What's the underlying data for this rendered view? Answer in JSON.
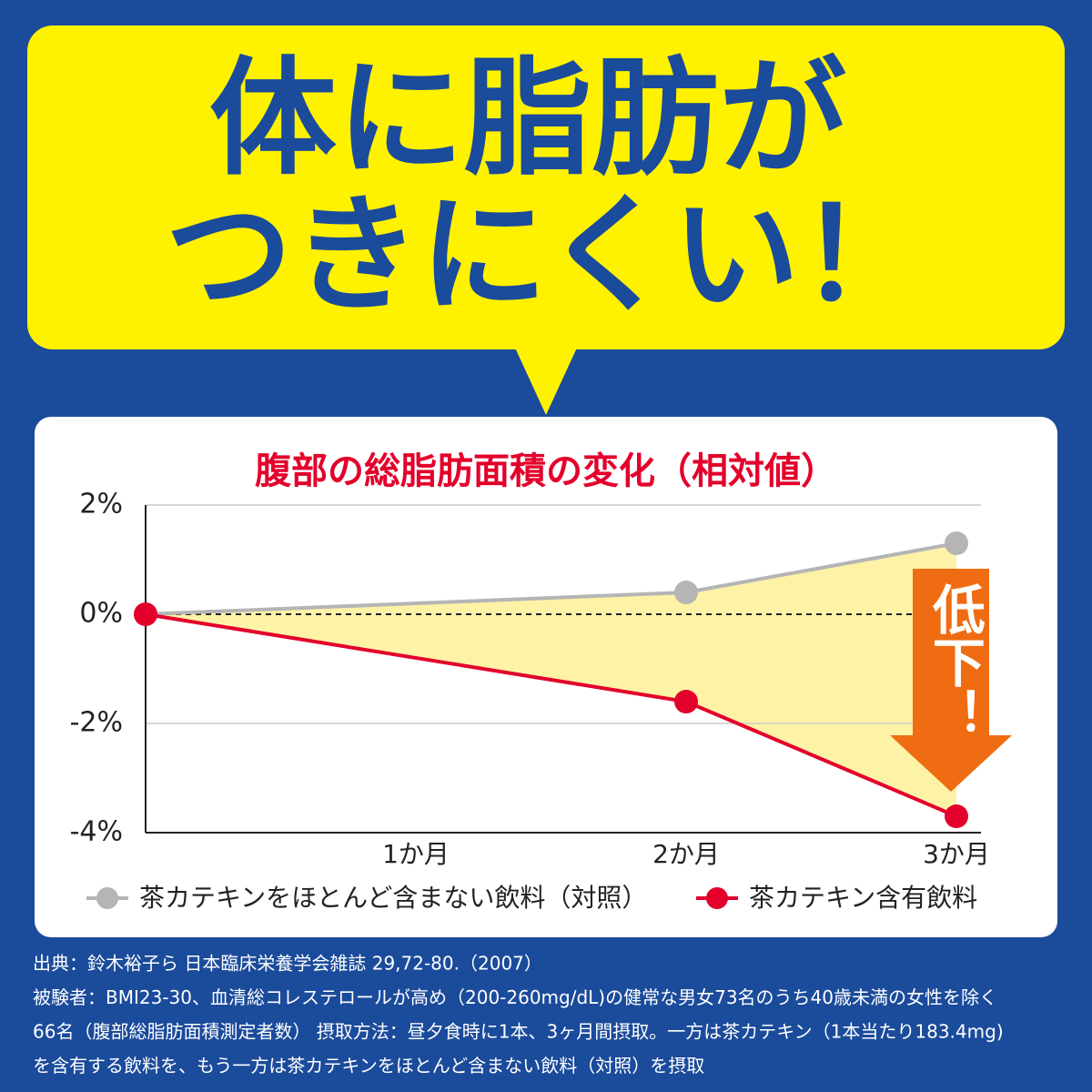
{
  "headline": [
    "体に脂肪が",
    "つきにくい！"
  ],
  "arrow_label": "低下！",
  "footnotes": [
    "出典：鈴木裕子ら 日本臨床栄養学会雑誌 29,72-80.（2007）",
    "被験者：BMI23-30、血清総コレステロールが高め（200-260mg/dL)の健常な男女73名のうち40歳未満の女性を除く",
    "66名（腹部総脂肪面積測定者数） 摂取方法：昼夕食時に1本、3ヶ月間摂取。一方は茶カテキン（1本当たり183.4mg)",
    "を含有する飲料を、もう一方は茶カテキンをほとんど含まない飲料（対照）を摂取"
  ],
  "chart_data": {
    "type": "line",
    "title": "腹部の総脂肪面積の変化（相対値）",
    "x": [
      0,
      2,
      3
    ],
    "xlim": [
      0,
      3
    ],
    "xticks": [
      {
        "value": 1,
        "label": "1か月"
      },
      {
        "value": 2,
        "label": "2か月"
      },
      {
        "value": 3,
        "label": "3か月"
      }
    ],
    "ylim": [
      -4,
      2
    ],
    "yticks": [
      {
        "value": -4,
        "label": "-4%"
      },
      {
        "value": -2,
        "label": "-2%"
      },
      {
        "value": 0,
        "label": "0%"
      },
      {
        "value": 2,
        "label": "2%"
      }
    ],
    "grid": true,
    "series": [
      {
        "name": "茶カテキンをほとんど含まない飲料（対照）",
        "color": "#b5b5b5",
        "values": [
          0,
          0.4,
          1.3
        ]
      },
      {
        "name": "茶カテキン含有飲料",
        "color": "#e3002b",
        "values": [
          0,
          -1.6,
          -3.7
        ]
      }
    ]
  }
}
